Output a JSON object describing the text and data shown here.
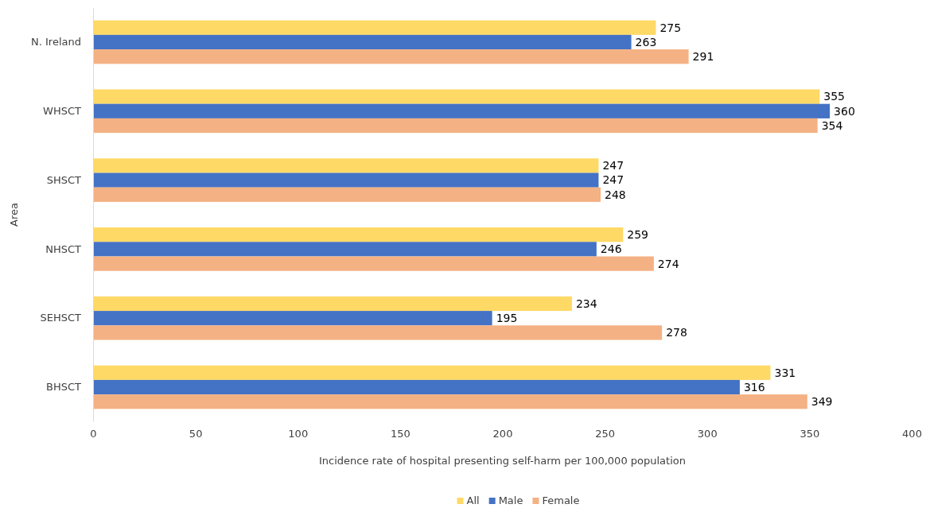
{
  "chart_data": {
    "type": "bar",
    "orientation": "horizontal",
    "xlabel": "Incidence rate of hospital presenting self-harm per 100,000 population",
    "ylabel": "Area",
    "categories": [
      "N. Ireland",
      "WHSCT",
      "SHSCT",
      "NHSCT",
      "SEHSCT",
      "BHSCT"
    ],
    "series": [
      {
        "name": "All",
        "color": "#ffd966",
        "values": [
          275,
          355,
          247,
          259,
          234,
          331
        ]
      },
      {
        "name": "Male",
        "color": "#4472c4",
        "values": [
          263,
          360,
          247,
          246,
          195,
          316
        ]
      },
      {
        "name": "Female",
        "color": "#f4b183",
        "values": [
          291,
          354,
          248,
          274,
          278,
          349
        ]
      }
    ],
    "xlim": [
      0,
      400
    ],
    "xticks": [
      0,
      50,
      100,
      150,
      200,
      250,
      300,
      350,
      400
    ],
    "data_labels": true,
    "grid": false,
    "legend": "bottom"
  }
}
